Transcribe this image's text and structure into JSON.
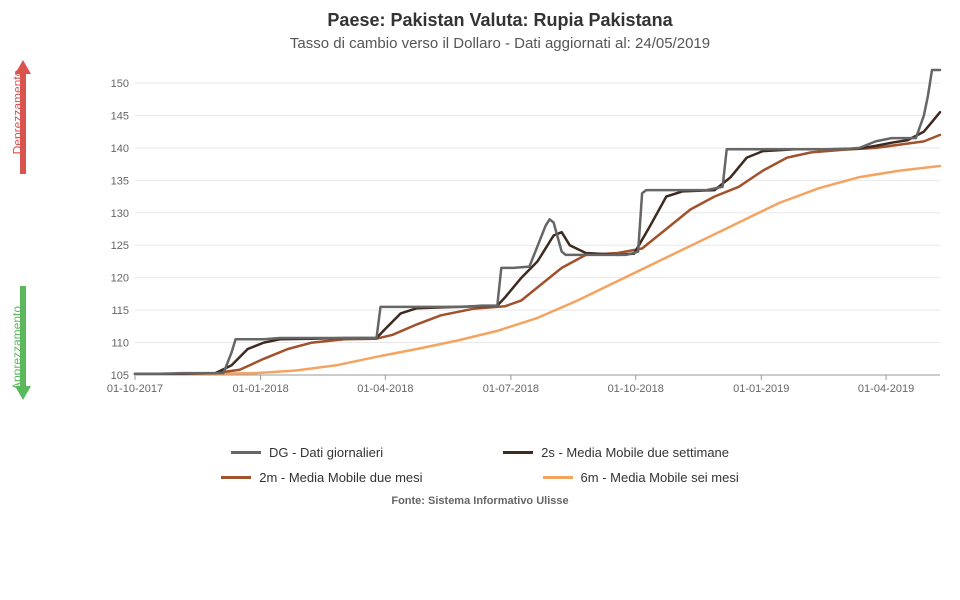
{
  "title": "Paese: Pakistan Valuta: Rupia Pakistana",
  "subtitle": "Tasso di cambio verso il Dollaro - Dati aggiornati al: 24/05/2019",
  "y_label_up": "Deprezzamento",
  "y_label_down": "Apprezzamento",
  "source": "Fonte: Sistema Informativo Ulisse",
  "arrow_up_color": "#d9534f",
  "arrow_down_color": "#5cb85c",
  "legend": {
    "items": [
      {
        "label": "DG - Dati giornalieri",
        "color": "#666666"
      },
      {
        "label": "2s - Media Mobile due settimane",
        "color": "#3e2a1f"
      },
      {
        "label": "2m - Media Mobile due mesi",
        "color": "#a0522d"
      },
      {
        "label": "6m - Media Mobile sei mesi",
        "color": "#f4a460"
      }
    ]
  },
  "chart": {
    "type": "line",
    "background_color": "#ffffff",
    "grid_color": "#e8e8e8",
    "axis_text_color": "#666666",
    "axis_fontsize": 11,
    "ylim": [
      105,
      152
    ],
    "ytick_step": 5,
    "yticks": [
      105,
      110,
      115,
      120,
      125,
      130,
      135,
      140,
      145,
      150
    ],
    "x_labels": [
      "01-10-2017",
      "01-01-2018",
      "01-04-2018",
      "01-07-2018",
      "01-10-2018",
      "01-01-2019",
      "01-04-2019"
    ],
    "x_positions": [
      0,
      0.156,
      0.311,
      0.467,
      0.622,
      0.778,
      0.933
    ],
    "line_width": 2.5,
    "series": [
      {
        "name": "DG",
        "color": "#666666",
        "data": [
          [
            0.0,
            105.2
          ],
          [
            0.03,
            105.2
          ],
          [
            0.06,
            105.3
          ],
          [
            0.09,
            105.3
          ],
          [
            0.11,
            105.3
          ],
          [
            0.12,
            108.5
          ],
          [
            0.125,
            110.5
          ],
          [
            0.13,
            110.5
          ],
          [
            0.14,
            110.5
          ],
          [
            0.16,
            110.5
          ],
          [
            0.18,
            110.7
          ],
          [
            0.2,
            110.7
          ],
          [
            0.22,
            110.7
          ],
          [
            0.24,
            110.7
          ],
          [
            0.26,
            110.7
          ],
          [
            0.28,
            110.7
          ],
          [
            0.3,
            110.7
          ],
          [
            0.305,
            115.5
          ],
          [
            0.31,
            115.5
          ],
          [
            0.33,
            115.5
          ],
          [
            0.35,
            115.5
          ],
          [
            0.37,
            115.5
          ],
          [
            0.39,
            115.5
          ],
          [
            0.41,
            115.5
          ],
          [
            0.43,
            115.7
          ],
          [
            0.45,
            115.7
          ],
          [
            0.455,
            121.5
          ],
          [
            0.46,
            121.5
          ],
          [
            0.47,
            121.5
          ],
          [
            0.49,
            121.7
          ],
          [
            0.51,
            128.0
          ],
          [
            0.515,
            129.0
          ],
          [
            0.52,
            128.5
          ],
          [
            0.53,
            124.0
          ],
          [
            0.535,
            123.5
          ],
          [
            0.55,
            123.5
          ],
          [
            0.57,
            123.5
          ],
          [
            0.59,
            123.5
          ],
          [
            0.61,
            123.5
          ],
          [
            0.625,
            124.0
          ],
          [
            0.63,
            133.0
          ],
          [
            0.635,
            133.5
          ],
          [
            0.65,
            133.5
          ],
          [
            0.67,
            133.5
          ],
          [
            0.69,
            133.5
          ],
          [
            0.71,
            133.5
          ],
          [
            0.73,
            134.0
          ],
          [
            0.735,
            139.8
          ],
          [
            0.74,
            139.8
          ],
          [
            0.76,
            139.8
          ],
          [
            0.78,
            139.8
          ],
          [
            0.8,
            139.8
          ],
          [
            0.82,
            139.8
          ],
          [
            0.84,
            139.8
          ],
          [
            0.86,
            139.8
          ],
          [
            0.88,
            139.8
          ],
          [
            0.9,
            140.0
          ],
          [
            0.92,
            141.0
          ],
          [
            0.94,
            141.5
          ],
          [
            0.96,
            141.5
          ],
          [
            0.97,
            141.5
          ],
          [
            0.98,
            145.0
          ],
          [
            0.985,
            148.0
          ],
          [
            0.99,
            152.0
          ],
          [
            1.0,
            152.0
          ]
        ]
      },
      {
        "name": "2s",
        "color": "#3e2a1f",
        "data": [
          [
            0.0,
            105.2
          ],
          [
            0.05,
            105.2
          ],
          [
            0.1,
            105.3
          ],
          [
            0.12,
            106.5
          ],
          [
            0.14,
            109.0
          ],
          [
            0.16,
            110.0
          ],
          [
            0.18,
            110.5
          ],
          [
            0.22,
            110.6
          ],
          [
            0.26,
            110.7
          ],
          [
            0.3,
            110.7
          ],
          [
            0.31,
            112.0
          ],
          [
            0.33,
            114.5
          ],
          [
            0.35,
            115.3
          ],
          [
            0.4,
            115.5
          ],
          [
            0.45,
            115.7
          ],
          [
            0.46,
            117.0
          ],
          [
            0.48,
            120.0
          ],
          [
            0.5,
            122.5
          ],
          [
            0.52,
            126.5
          ],
          [
            0.53,
            127.0
          ],
          [
            0.54,
            125.0
          ],
          [
            0.56,
            123.8
          ],
          [
            0.6,
            123.5
          ],
          [
            0.62,
            123.7
          ],
          [
            0.64,
            128.0
          ],
          [
            0.66,
            132.5
          ],
          [
            0.68,
            133.3
          ],
          [
            0.72,
            133.5
          ],
          [
            0.74,
            135.5
          ],
          [
            0.76,
            138.5
          ],
          [
            0.78,
            139.5
          ],
          [
            0.82,
            139.8
          ],
          [
            0.86,
            139.8
          ],
          [
            0.9,
            139.9
          ],
          [
            0.92,
            140.3
          ],
          [
            0.94,
            140.8
          ],
          [
            0.96,
            141.2
          ],
          [
            0.98,
            142.5
          ],
          [
            0.99,
            144.0
          ],
          [
            1.0,
            145.5
          ]
        ]
      },
      {
        "name": "2m",
        "color": "#a0522d",
        "data": [
          [
            0.0,
            105.2
          ],
          [
            0.05,
            105.2
          ],
          [
            0.1,
            105.3
          ],
          [
            0.13,
            105.8
          ],
          [
            0.16,
            107.5
          ],
          [
            0.19,
            109.0
          ],
          [
            0.22,
            110.0
          ],
          [
            0.26,
            110.5
          ],
          [
            0.3,
            110.6
          ],
          [
            0.32,
            111.2
          ],
          [
            0.35,
            112.8
          ],
          [
            0.38,
            114.2
          ],
          [
            0.42,
            115.2
          ],
          [
            0.46,
            115.6
          ],
          [
            0.48,
            116.5
          ],
          [
            0.5,
            118.5
          ],
          [
            0.53,
            121.5
          ],
          [
            0.56,
            123.5
          ],
          [
            0.6,
            123.8
          ],
          [
            0.63,
            124.5
          ],
          [
            0.66,
            127.5
          ],
          [
            0.69,
            130.5
          ],
          [
            0.72,
            132.5
          ],
          [
            0.75,
            134.0
          ],
          [
            0.78,
            136.5
          ],
          [
            0.81,
            138.5
          ],
          [
            0.84,
            139.3
          ],
          [
            0.88,
            139.7
          ],
          [
            0.92,
            140.0
          ],
          [
            0.95,
            140.5
          ],
          [
            0.98,
            141.0
          ],
          [
            1.0,
            142.0
          ]
        ]
      },
      {
        "name": "6m",
        "color": "#f4a460",
        "data": [
          [
            0.0,
            105.2
          ],
          [
            0.05,
            105.2
          ],
          [
            0.1,
            105.2
          ],
          [
            0.15,
            105.3
          ],
          [
            0.2,
            105.7
          ],
          [
            0.25,
            106.5
          ],
          [
            0.3,
            107.8
          ],
          [
            0.35,
            109.0
          ],
          [
            0.4,
            110.3
          ],
          [
            0.45,
            111.8
          ],
          [
            0.5,
            113.8
          ],
          [
            0.55,
            116.5
          ],
          [
            0.6,
            119.5
          ],
          [
            0.65,
            122.5
          ],
          [
            0.7,
            125.5
          ],
          [
            0.75,
            128.5
          ],
          [
            0.8,
            131.5
          ],
          [
            0.85,
            133.8
          ],
          [
            0.9,
            135.5
          ],
          [
            0.95,
            136.5
          ],
          [
            1.0,
            137.2
          ]
        ]
      }
    ]
  }
}
